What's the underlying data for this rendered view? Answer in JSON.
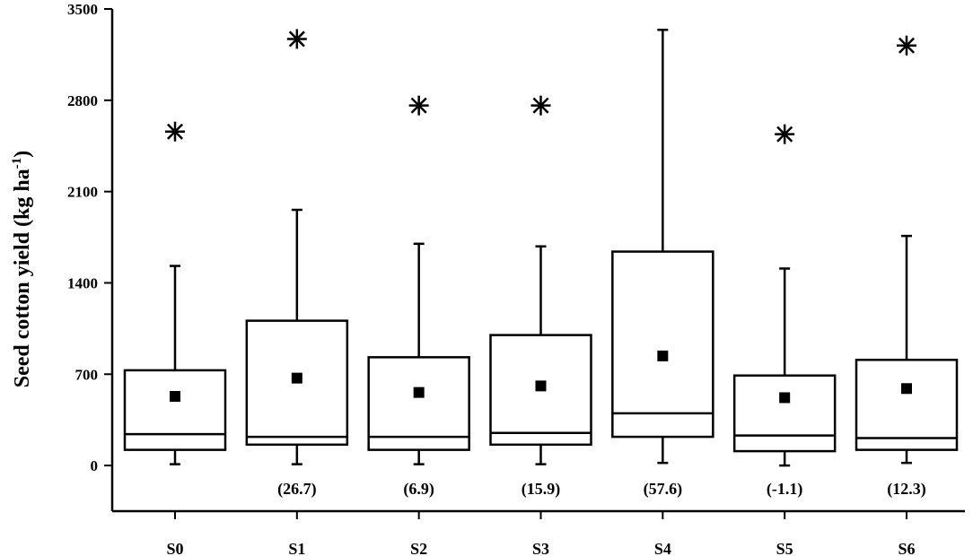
{
  "chart_data": {
    "type": "box",
    "ylabel_main": "Seed cotton yield (kg ha",
    "ylabel_sup": "-1",
    "ylabel_close": ")",
    "xlabel": "",
    "ylim": [
      -350,
      3500
    ],
    "yticks": [
      0,
      700,
      1400,
      2100,
      2800,
      3500
    ],
    "categories": [
      "S0",
      "S1",
      "S2",
      "S3",
      "S4",
      "S5",
      "S6"
    ],
    "boxes": [
      {
        "name": "S0",
        "whisker_low": 10,
        "q1": 120,
        "median": 240,
        "q3": 730,
        "whisker_high": 1530,
        "mean": 530,
        "outlier": 2560,
        "pct_label": ""
      },
      {
        "name": "S1",
        "whisker_low": 10,
        "q1": 160,
        "median": 220,
        "q3": 1110,
        "whisker_high": 1960,
        "mean": 670,
        "outlier": 3270,
        "pct_label": "(26.7)"
      },
      {
        "name": "S2",
        "whisker_low": 10,
        "q1": 120,
        "median": 220,
        "q3": 830,
        "whisker_high": 1700,
        "mean": 560,
        "outlier": 2760,
        "pct_label": "(6.9)"
      },
      {
        "name": "S3",
        "whisker_low": 10,
        "q1": 160,
        "median": 250,
        "q3": 1000,
        "whisker_high": 1680,
        "mean": 610,
        "outlier": 2760,
        "pct_label": "(15.9)"
      },
      {
        "name": "S4",
        "whisker_low": 20,
        "q1": 220,
        "median": 400,
        "q3": 1640,
        "whisker_high": 3340,
        "mean": 840,
        "outlier": null,
        "pct_label": "(57.6)"
      },
      {
        "name": "S5",
        "whisker_low": 0,
        "q1": 110,
        "median": 230,
        "q3": 690,
        "whisker_high": 1510,
        "mean": 520,
        "outlier": 2540,
        "pct_label": "(-1.1)"
      },
      {
        "name": "S6",
        "whisker_low": 20,
        "q1": 120,
        "median": 210,
        "q3": 810,
        "whisker_high": 1760,
        "mean": 590,
        "outlier": 3220,
        "pct_label": "(12.3)"
      }
    ]
  }
}
